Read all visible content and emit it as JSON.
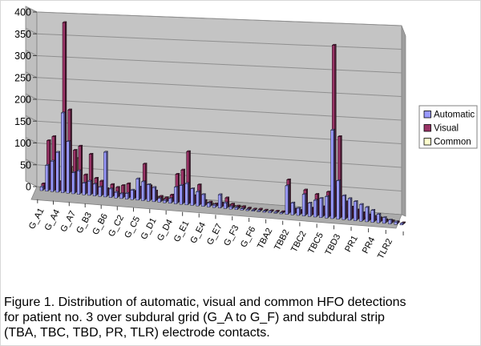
{
  "figure": {
    "caption_lines": [
      "Figure 1. Distribution of automatic, visual and common HFO detections",
      "for patient no. 3 over subdural grid (G_A to G_F) and subdural strip",
      "(TBA, TBC, TBD, PR, TLR) electrode contacts."
    ]
  },
  "chart_data": {
    "type": "bar",
    "style": "3d-column",
    "title": "",
    "xlabel": "",
    "ylabel": "",
    "ylim": [
      0,
      400
    ],
    "y_tick_step": 50,
    "y_tick_labels": [
      "0",
      "50",
      "100",
      "150",
      "200",
      "250",
      "300",
      "350",
      "400"
    ],
    "grid": true,
    "legend_position": "right",
    "n_categories": 66,
    "x_ticks_every": 3,
    "x_tick_labels": [
      "G_A1",
      "G_A4",
      "G_A7",
      "G_B3",
      "G_B6",
      "G_C2",
      "G_C5",
      "G_D1",
      "G_D4",
      "G_E1",
      "G_E4",
      "G_E7",
      "G_F3",
      "G_F6",
      "TBA2",
      "TBB2",
      "TBC2",
      "TBC5",
      "TBD3",
      "PR1",
      "PR4",
      "TLR2"
    ],
    "series": [
      {
        "name": "Automatic",
        "color": "#9999FF",
        "values": [
          8,
          55,
          65,
          85,
          170,
          110,
          45,
          50,
          25,
          30,
          25,
          20,
          95,
          18,
          12,
          10,
          12,
          20,
          45,
          40,
          35,
          30,
          8,
          5,
          10,
          35,
          40,
          45,
          35,
          30,
          25,
          8,
          5,
          28,
          12,
          5,
          4,
          3,
          2,
          2,
          2,
          2,
          3,
          2,
          2,
          60,
          25,
          15,
          45,
          28,
          35,
          40,
          45,
          185,
          80,
          50,
          45,
          40,
          35,
          30,
          25,
          18,
          12,
          8,
          5,
          3
        ]
      },
      {
        "name": "Visual",
        "color": "#993366",
        "values": [
          12,
          105,
          115,
          20,
          360,
          175,
          90,
          100,
          40,
          85,
          35,
          30,
          15,
          25,
          20,
          25,
          30,
          15,
          25,
          75,
          30,
          20,
          10,
          8,
          15,
          60,
          70,
          110,
          18,
          42,
          10,
          8,
          5,
          8,
          20,
          8,
          5,
          5,
          3,
          2,
          3,
          2,
          2,
          2,
          2,
          70,
          10,
          8,
          52,
          15,
          45,
          20,
          52,
          360,
          170,
          35,
          25,
          20,
          15,
          12,
          10,
          8,
          5,
          4,
          3,
          2
        ]
      },
      {
        "name": "Common",
        "color": "#FFFFCC",
        "values": [
          2,
          10,
          38,
          5,
          60,
          50,
          70,
          5,
          8,
          10,
          5,
          4,
          3,
          3,
          2,
          2,
          3,
          2,
          5,
          8,
          5,
          4,
          1,
          1,
          2,
          8,
          10,
          15,
          3,
          5,
          2,
          1,
          1,
          2,
          2,
          1,
          1,
          0,
          0,
          0,
          0,
          0,
          0,
          0,
          0,
          6,
          2,
          1,
          5,
          2,
          4,
          4,
          6,
          60,
          20,
          5,
          4,
          3,
          3,
          2,
          2,
          1,
          1,
          1,
          0,
          0
        ]
      }
    ],
    "wall_color": "#C4C4C4",
    "floor_color": "#ACACAC",
    "gridline_color": "#8F8F8F"
  }
}
